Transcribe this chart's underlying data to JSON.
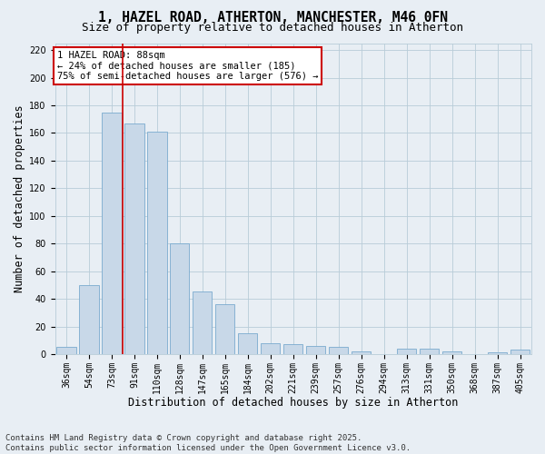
{
  "title_line1": "1, HAZEL ROAD, ATHERTON, MANCHESTER, M46 0FN",
  "title_line2": "Size of property relative to detached houses in Atherton",
  "xlabel": "Distribution of detached houses by size in Atherton",
  "ylabel": "Number of detached properties",
  "categories": [
    "36sqm",
    "54sqm",
    "73sqm",
    "91sqm",
    "110sqm",
    "128sqm",
    "147sqm",
    "165sqm",
    "184sqm",
    "202sqm",
    "221sqm",
    "239sqm",
    "257sqm",
    "276sqm",
    "294sqm",
    "313sqm",
    "331sqm",
    "350sqm",
    "368sqm",
    "387sqm",
    "405sqm"
  ],
  "values": [
    5,
    50,
    175,
    167,
    161,
    80,
    45,
    36,
    15,
    8,
    7,
    6,
    5,
    2,
    0,
    4,
    4,
    2,
    0,
    1,
    3
  ],
  "bar_color": "#c8d8e8",
  "bar_edge_color": "#7aabce",
  "vline_x_index": 2.5,
  "vline_color": "#cc0000",
  "annotation_title": "1 HAZEL ROAD: 88sqm",
  "annotation_line1": "← 24% of detached houses are smaller (185)",
  "annotation_line2": "75% of semi-detached houses are larger (576) →",
  "annotation_box_edgecolor": "#cc0000",
  "ylim": [
    0,
    225
  ],
  "yticks": [
    0,
    20,
    40,
    60,
    80,
    100,
    120,
    140,
    160,
    180,
    200,
    220
  ],
  "footer_line1": "Contains HM Land Registry data © Crown copyright and database right 2025.",
  "footer_line2": "Contains public sector information licensed under the Open Government Licence v3.0.",
  "background_color": "#e8eef4",
  "plot_background_color": "#e8eef4",
  "grid_color": "#b8ccd8",
  "title_fontsize": 10.5,
  "subtitle_fontsize": 9,
  "axis_label_fontsize": 8.5,
  "tick_fontsize": 7,
  "annotation_fontsize": 7.5,
  "footer_fontsize": 6.5
}
